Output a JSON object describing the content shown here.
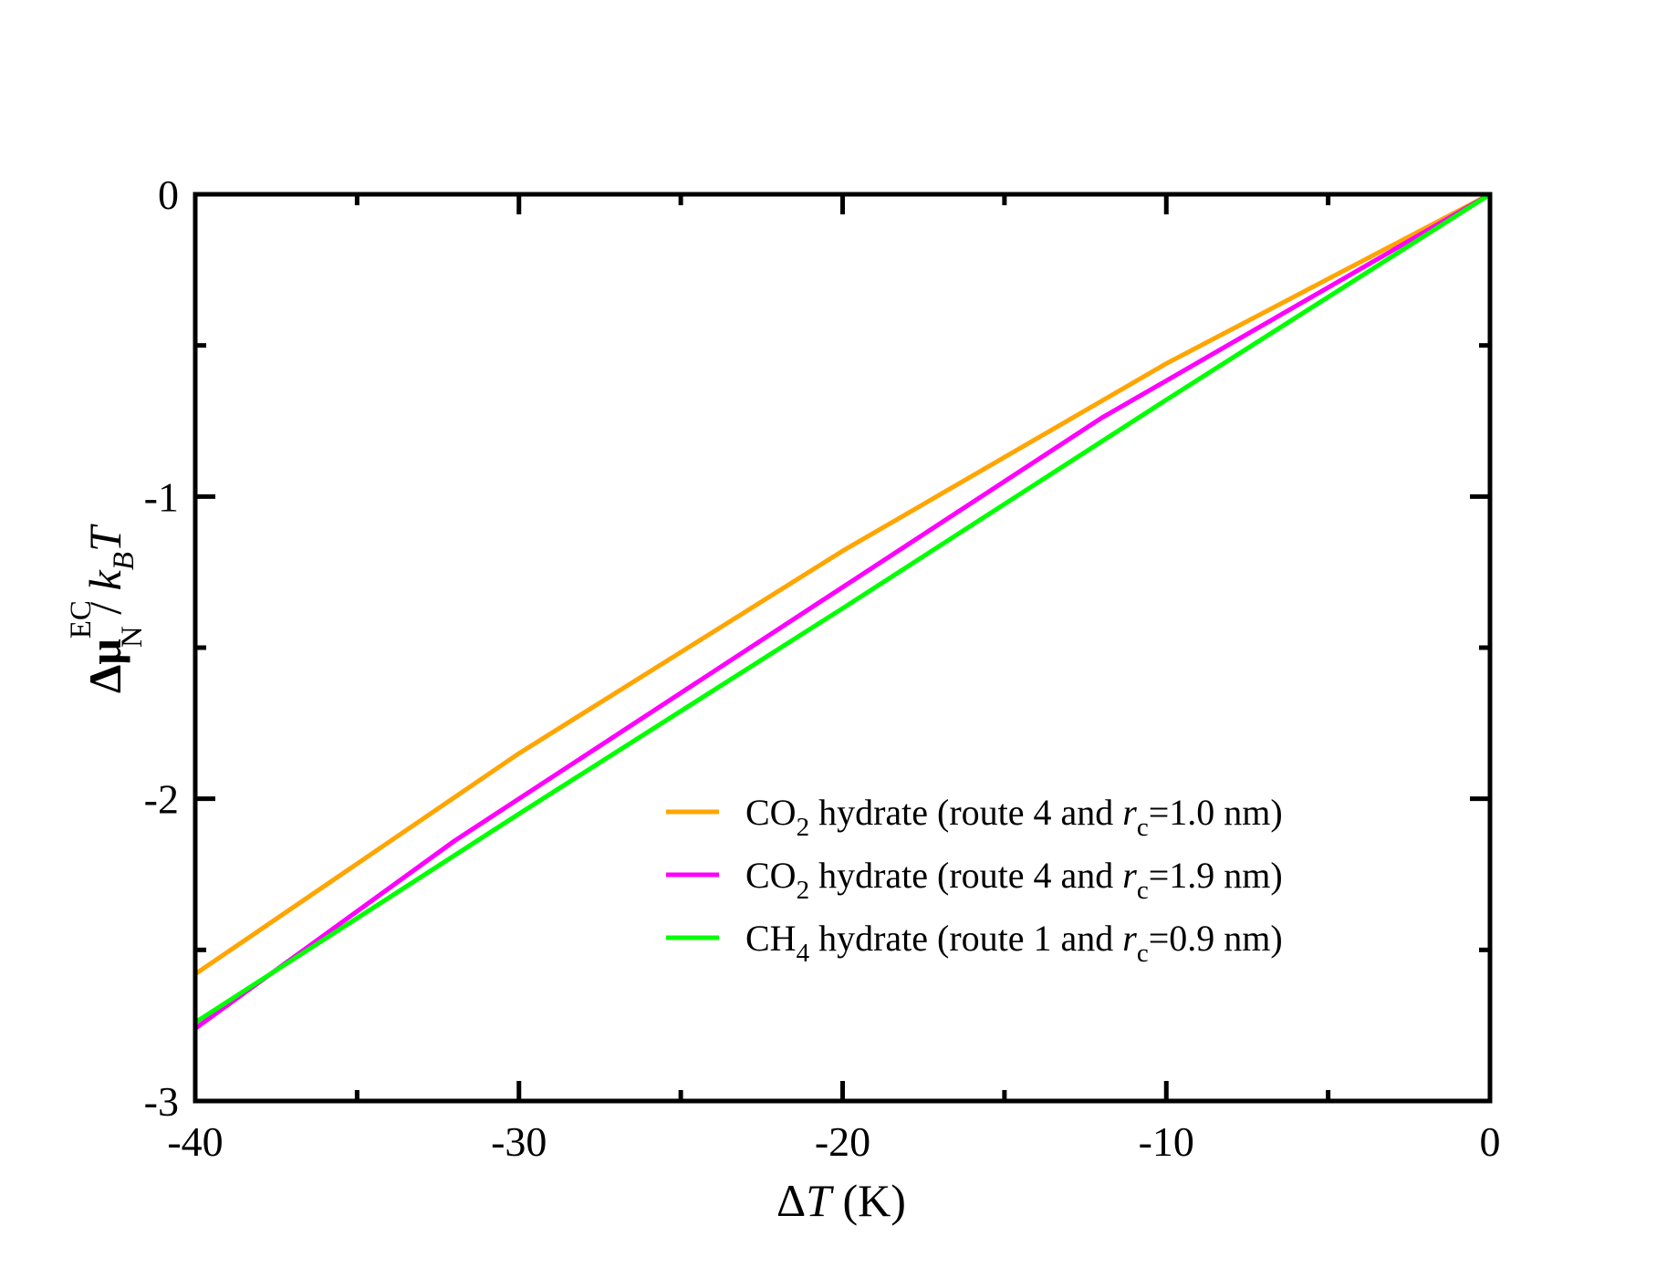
{
  "chart_data": {
    "type": "line",
    "xlabel": {
      "delta": "Δ",
      "var": "T",
      "unit": " (K)"
    },
    "ylabel": {
      "delta": "Δ",
      "mu": "μ",
      "sup": "EC",
      "sub": "N",
      "slash": " / ",
      "k": "k",
      "ksub": "B",
      "T": "T"
    },
    "xlim": [
      -40,
      0
    ],
    "ylim": [
      -3,
      0
    ],
    "x_ticks": [
      -40,
      -30,
      -20,
      -10,
      0
    ],
    "x_tick_labels": [
      "-40",
      "-30",
      "-20",
      "-10",
      "0"
    ],
    "y_ticks": [
      -3,
      -2,
      -1,
      0
    ],
    "y_tick_labels": [
      "-3",
      "-2",
      "-1",
      "0"
    ],
    "x_minor_ticks": [
      -35,
      -25,
      -15,
      -5
    ],
    "y_minor_ticks": [
      -2.5,
      -1.5,
      -0.5
    ],
    "grid": false,
    "legend_position": "lower-right",
    "series": [
      {
        "legend": {
          "pre": "CO",
          "sub": "2",
          "mid": " hydrate (route 4 and ",
          "r": "r",
          "rsub": "c",
          "post": "=1.0 nm)"
        },
        "color": "#FFA500",
        "x": [
          -40,
          -30,
          -20,
          -10,
          0
        ],
        "y": [
          -2.58,
          -1.85,
          -1.18,
          -0.56,
          0
        ]
      },
      {
        "legend": {
          "pre": "CO",
          "sub": "2",
          "mid": " hydrate (route 4 and ",
          "r": "r",
          "rsub": "c",
          "post": "=1.9 nm)"
        },
        "color": "#FF00FF",
        "x": [
          -40,
          -32,
          -20,
          -12,
          0
        ],
        "y": [
          -2.76,
          -2.14,
          -1.3,
          -0.74,
          0
        ]
      },
      {
        "legend": {
          "pre": "CH",
          "sub": "4",
          "mid": " hydrate (route 1 and ",
          "r": "r",
          "rsub": "c",
          "post": "=0.9 nm)"
        },
        "color": "#00FF00",
        "x": [
          -40,
          -30,
          -20,
          -10,
          0
        ],
        "y": [
          -2.74,
          -2.05,
          -1.37,
          -0.68,
          0
        ]
      }
    ]
  }
}
